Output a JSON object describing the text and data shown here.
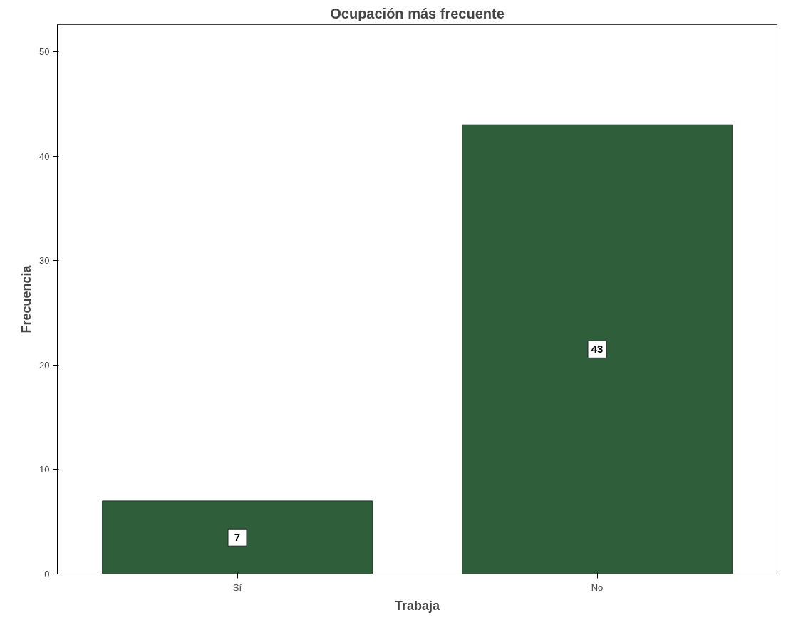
{
  "chart_data": {
    "type": "bar",
    "title": "Ocupación más frecuente",
    "xlabel": "Trabaja",
    "ylabel": "Frecuencia",
    "categories": [
      "Sí",
      "No"
    ],
    "values": [
      7,
      43
    ],
    "color": "#2f5e3b",
    "ylim": [
      0,
      52.6
    ],
    "yticks": [
      0,
      10,
      20,
      30,
      40,
      50
    ],
    "grid": false,
    "data_labels": true
  }
}
